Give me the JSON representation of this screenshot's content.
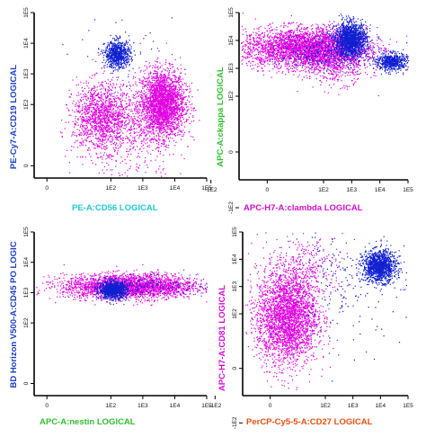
{
  "chart_data": [
    {
      "type": "scatter",
      "xlabel": "PE-A:CD56 LOGICAL",
      "ylabel": "PE-Cy7-A:CD19 LOGICAL",
      "x_ticks": [
        "0",
        "1E2",
        "1E3",
        "1E4",
        "1E5"
      ],
      "y_ticks": [
        "0",
        "1E2",
        "1E3",
        "1E4",
        "1E5"
      ],
      "xlabel_color": "#22c8d8",
      "ylabel_color": "#1a3fc4",
      "populations": [
        {
          "color": "#e000e0",
          "count": 2600,
          "x_mean": 3.6,
          "x_sd": 0.35,
          "y_mean": 2.05,
          "y_sd": 0.55
        },
        {
          "color": "#e000e0",
          "count": 1300,
          "x_mean": 1.7,
          "x_sd": 0.45,
          "y_mean": 1.6,
          "y_sd": 0.55
        },
        {
          "color": "#e000e0",
          "count": 500,
          "x_mean": 2.6,
          "x_sd": 0.8,
          "y_mean": 1.2,
          "y_sd": 0.8
        },
        {
          "color": "#1020d0",
          "count": 750,
          "x_mean": 2.2,
          "x_sd": 0.2,
          "y_mean": 3.65,
          "y_sd": 0.22
        },
        {
          "color": "#1020d0",
          "count": 40,
          "x_mean": 2.6,
          "x_sd": 1.0,
          "y_mean": 3.6,
          "y_sd": 0.9
        }
      ]
    },
    {
      "type": "scatter",
      "xlabel": "APC-H7-A:clambda LOGICAL",
      "ylabel": "APC-A:ckappa LOGICAL",
      "x_ticks": [
        "-1E2",
        "0",
        "1E2",
        "1E3",
        "1E4",
        "1E5"
      ],
      "y_ticks": [
        "-1E2",
        "0",
        "1E2",
        "1E3",
        "1E4",
        "1E5"
      ],
      "xlabel_color": "#d010d0",
      "ylabel_color": "#30c030",
      "populations": [
        {
          "color": "#e000e0",
          "count": 3200,
          "x_mean": 1.3,
          "x_sd": 1.1,
          "y_mean": 3.75,
          "y_sd": 0.35
        },
        {
          "color": "#e000e0",
          "count": 800,
          "x_mean": 2.4,
          "x_sd": 0.6,
          "y_mean": 3.4,
          "y_sd": 0.45
        },
        {
          "color": "#1020d0",
          "count": 1500,
          "x_mean": 2.95,
          "x_sd": 0.28,
          "y_mean": 4.05,
          "y_sd": 0.3
        },
        {
          "color": "#1020d0",
          "count": 600,
          "x_mean": 4.4,
          "x_sd": 0.28,
          "y_mean": 3.25,
          "y_sd": 0.16
        },
        {
          "color": "#1020d0",
          "count": 300,
          "x_mean": 2.0,
          "x_sd": 0.8,
          "y_mean": 3.6,
          "y_sd": 0.35
        }
      ]
    },
    {
      "type": "scatter",
      "xlabel": "APC-A:nestin LOGICAL",
      "ylabel": "BD Horizon V500-A:CD45 PO LOGIC",
      "x_ticks": [
        "0",
        "1E2",
        "1E3",
        "1E4",
        "1E5"
      ],
      "y_ticks": [
        "0",
        "1E2",
        "1E3",
        "1E4",
        "1E5"
      ],
      "xlabel_color": "#30c030",
      "ylabel_color": "#1a3fc4",
      "populations": [
        {
          "color": "#e000e0",
          "count": 2800,
          "x_mean": 2.6,
          "x_sd": 1.05,
          "y_mean": 3.22,
          "y_sd": 0.2
        },
        {
          "color": "#1020d0",
          "count": 1000,
          "x_mean": 2.05,
          "x_sd": 0.22,
          "y_mean": 3.1,
          "y_sd": 0.14
        },
        {
          "color": "#1020d0",
          "count": 120,
          "x_mean": 3.2,
          "x_sd": 0.8,
          "y_mean": 3.25,
          "y_sd": 0.15
        }
      ]
    },
    {
      "type": "scatter",
      "xlabel": "PerCP-Cy5-5-A:CD27 LOGICAL",
      "ylabel": "APC-H7-A:CD81 LOGICAL",
      "x_ticks": [
        "-1E2",
        "0",
        "1E2",
        "1E3",
        "1E4",
        "1E5"
      ],
      "y_ticks": [
        "-1E2",
        "0",
        "1E2",
        "1E3",
        "1E4",
        "1E5"
      ],
      "xlabel_color": "#e85010",
      "ylabel_color": "#d010d0",
      "populations": [
        {
          "color": "#e000e0",
          "count": 3000,
          "x_mean": 0.6,
          "x_sd": 0.55,
          "y_mean": 1.9,
          "y_sd": 0.85
        },
        {
          "color": "#1020d0",
          "count": 1300,
          "x_mean": 3.95,
          "x_sd": 0.3,
          "y_mean": 3.75,
          "y_sd": 0.28
        },
        {
          "color": "#1020d0",
          "count": 220,
          "x_mean": 2.6,
          "x_sd": 1.1,
          "y_mean": 3.2,
          "y_sd": 1.1
        },
        {
          "color": "#e000e0",
          "count": 300,
          "x_mean": 1.3,
          "x_sd": 0.7,
          "y_mean": 3.7,
          "y_sd": 0.6
        }
      ]
    }
  ]
}
